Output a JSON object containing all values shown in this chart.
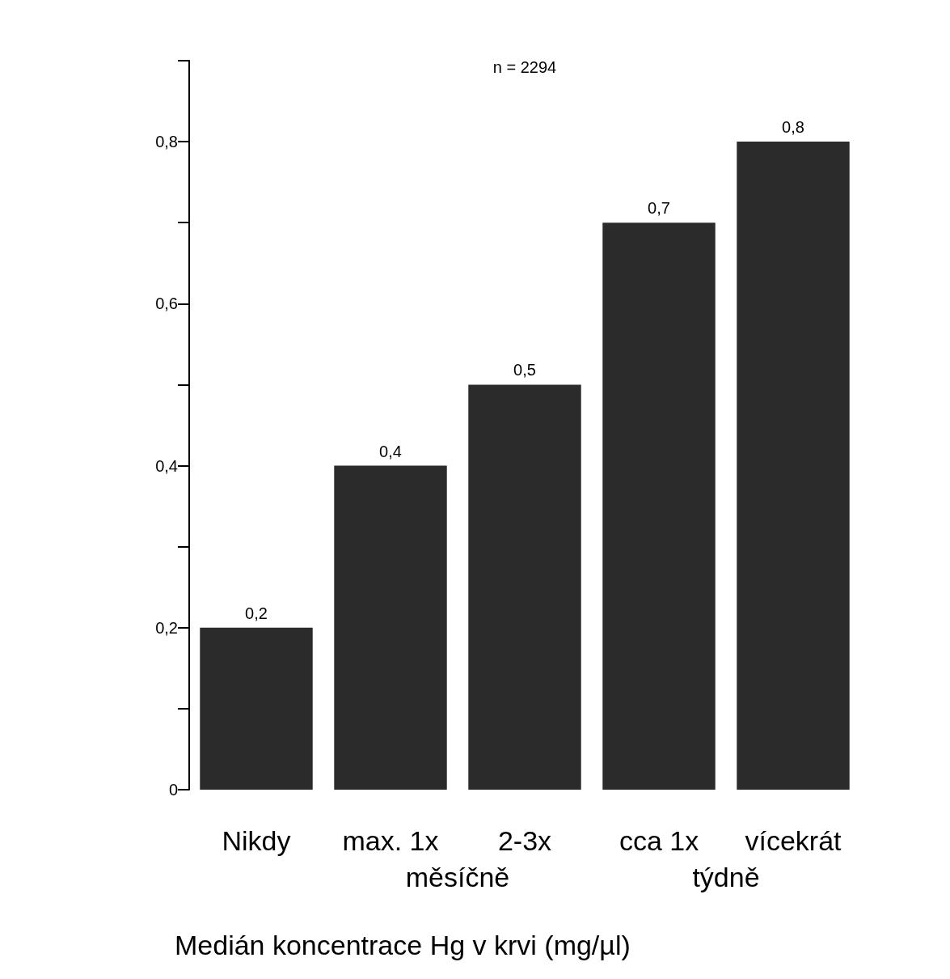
{
  "chart_data": {
    "type": "bar",
    "categories": [
      "Nikdy",
      "max. 1x",
      "2-3x",
      "cca 1x",
      "vícekrát"
    ],
    "values": [
      0.2,
      0.4,
      0.5,
      0.7,
      0.8
    ],
    "color": "#2b2b2b",
    "ylim": [
      0,
      0.9
    ],
    "yticks": [
      0,
      {
        "value": 0.1,
        "label": null
      },
      {
        "value": 0.2,
        "label": "0,2"
      },
      {
        "value": 0.3,
        "label": null
      },
      {
        "value": 0.4,
        "label": "0,4"
      },
      {
        "value": 0.5,
        "label": null
      },
      {
        "value": 0.6,
        "label": "0,6"
      },
      {
        "value": 0.7,
        "label": null
      },
      {
        "value": 0.8,
        "label": "0,8"
      },
      {
        "value": 0.9,
        "label": null
      }
    ],
    "value_labels": [
      "0,2",
      "0,4",
      "0,5",
      "0,7",
      "0,8"
    ],
    "annotations": [
      "n = 2294",
      "měsíčně",
      "týdně",
      "Medián koncentrace Hg v krvi (mg/µl)"
    ],
    "grid": false
  }
}
